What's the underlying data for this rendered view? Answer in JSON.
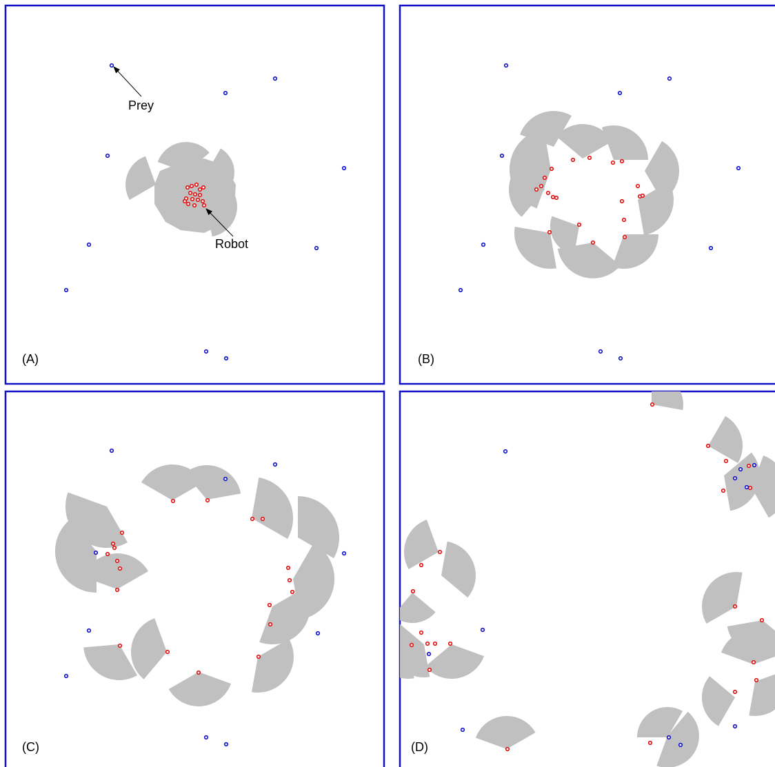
{
  "colors": {
    "robot": "#e01010",
    "prey": "#1010c8",
    "sensor": "#c0c0c0",
    "frame": "#1010c8"
  },
  "panels": [
    {
      "label": "(A)"
    },
    {
      "label": "(B)"
    },
    {
      "label": "(C)"
    },
    {
      "label": "(D)"
    }
  ],
  "annotations": {
    "prey": "Prey",
    "robot": "Robot"
  }
}
